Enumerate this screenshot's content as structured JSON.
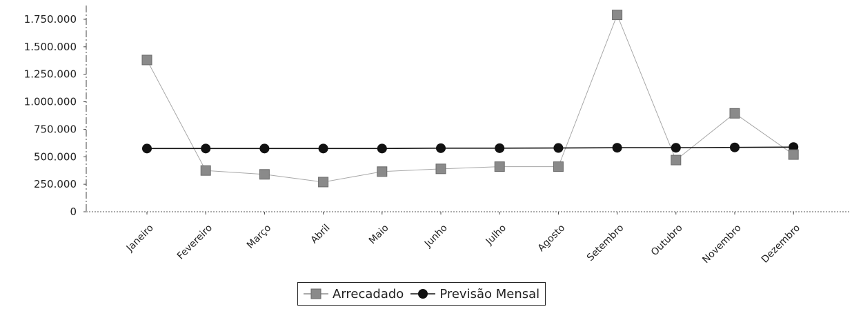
{
  "chart_data": {
    "type": "line",
    "categories": [
      "Janeiro",
      "Fevereiro",
      "Março",
      "Abril",
      "Maio",
      "Junho",
      "Julho",
      "Agosto",
      "Setembro",
      "Outubro",
      "Novembro",
      "Dezembro"
    ],
    "series": [
      {
        "name": "Arrecadado",
        "marker": "square",
        "color": "#8a8a8a",
        "line_color": "#a8a8a8",
        "values": [
          1380000,
          375000,
          340000,
          270000,
          365000,
          390000,
          410000,
          410000,
          1790000,
          470000,
          895000,
          520000
        ]
      },
      {
        "name": "Previsão Mensal",
        "marker": "circle",
        "color": "#111111",
        "line_color": "#111111",
        "values": [
          575000,
          575000,
          575000,
          575000,
          575000,
          578000,
          578000,
          580000,
          582000,
          582000,
          585000,
          588000
        ]
      }
    ],
    "yticks": [
      "0",
      "250.000",
      "500.000",
      "750.000",
      "1.000.000",
      "1.250.000",
      "1.500.000",
      "1.750.000"
    ],
    "ylim": [
      0,
      1800000
    ],
    "grid": false,
    "legend_position": "bottom"
  },
  "legend": {
    "items": [
      {
        "label": "Arrecadado",
        "icon": "square-marker-icon"
      },
      {
        "label": "Previsão Mensal",
        "icon": "circle-marker-icon"
      }
    ]
  }
}
